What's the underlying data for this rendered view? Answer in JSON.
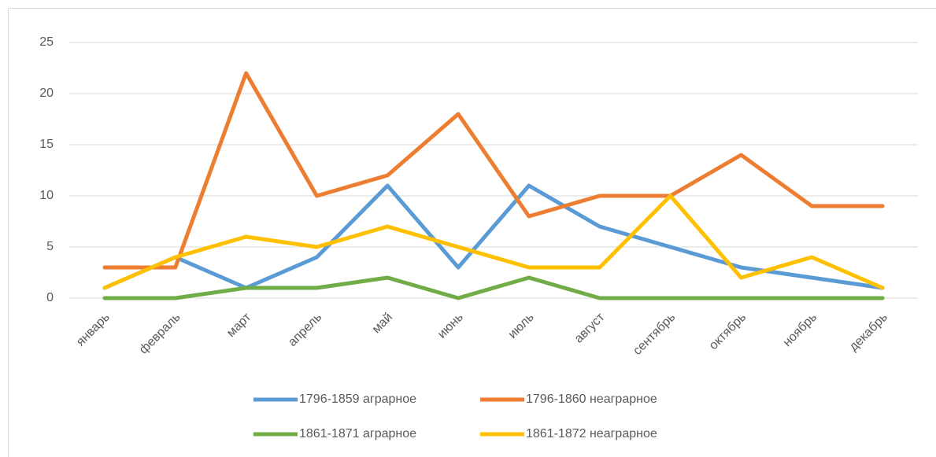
{
  "chart_data": {
    "type": "line",
    "categories": [
      "январь",
      "февраль",
      "март",
      "апрель",
      "май",
      "июнь",
      "июль",
      "август",
      "сентябрь",
      "октябрь",
      "ноябрь",
      "декабрь"
    ],
    "series": [
      {
        "name": "1796-1859 аграрное",
        "color": "#5b9bd5",
        "values": [
          1,
          4,
          1,
          4,
          11,
          3,
          11,
          7,
          5,
          3,
          2,
          1
        ]
      },
      {
        "name": "1796-1860 неаграрное",
        "color": "#ed7d31",
        "values": [
          3,
          3,
          22,
          10,
          12,
          18,
          8,
          10,
          10,
          14,
          9,
          9
        ]
      },
      {
        "name": "1861-1871 аграрное",
        "color": "#70ad47",
        "values": [
          0,
          0,
          1,
          1,
          2,
          0,
          2,
          0,
          0,
          0,
          0,
          0
        ]
      },
      {
        "name": "1861-1872 неаграрное",
        "color": "#ffc000",
        "values": [
          1,
          4,
          6,
          5,
          7,
          5,
          3,
          3,
          10,
          2,
          4,
          1
        ]
      }
    ],
    "ylim": [
      0,
      25
    ],
    "yticks": [
      0,
      5,
      10,
      15,
      20,
      25
    ],
    "grid": true
  }
}
